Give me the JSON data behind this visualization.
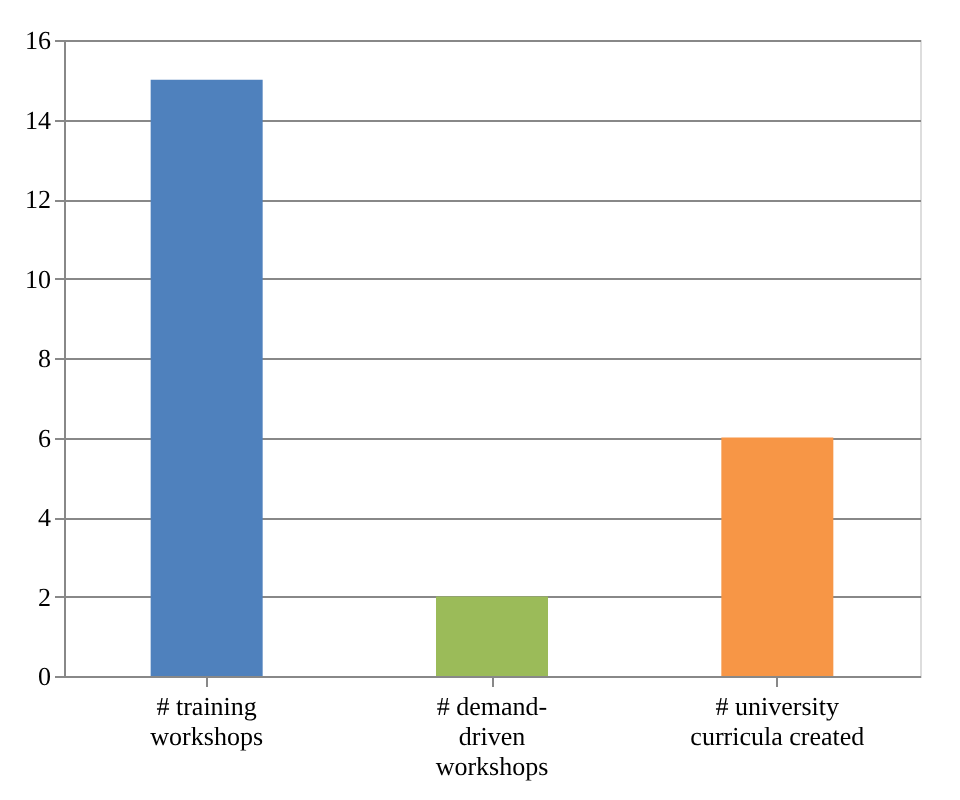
{
  "chart_data": {
    "type": "bar",
    "categories": [
      "# training\nworkshops",
      "# demand-\ndriven\nworkshops",
      "# university\ncurricula created"
    ],
    "values": [
      15,
      2,
      6
    ],
    "colors": [
      "#4f81bd",
      "#9bbb59",
      "#f79646"
    ],
    "ylim": [
      0,
      16
    ],
    "yticks": [
      0,
      2,
      4,
      6,
      8,
      10,
      12,
      14,
      16
    ],
    "grid": "y",
    "legend": false
  }
}
